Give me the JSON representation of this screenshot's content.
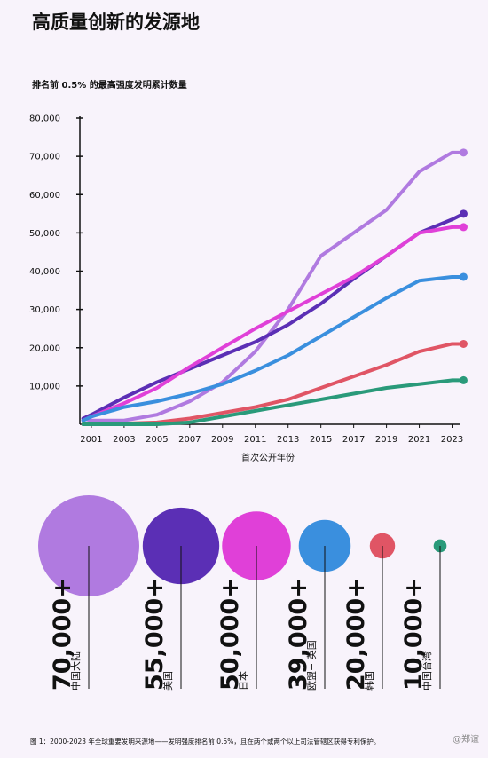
{
  "chart_data": [
    {
      "type": "line",
      "title": "高质量创新的发源地",
      "subtitle": "排名前 0.5% 的最高强度发明累计数量",
      "x_label": "首次公开年份",
      "x": [
        2000.5,
        2001,
        2003,
        2005,
        2007,
        2009,
        2011,
        2013,
        2015,
        2017,
        2019,
        2021,
        2023,
        2023.7
      ],
      "xlim": [
        2000.3,
        2024
      ],
      "xticks": [
        2001,
        2003,
        2005,
        2007,
        2009,
        2011,
        2013,
        2015,
        2017,
        2019,
        2021,
        2023
      ],
      "ylim": [
        0,
        80000
      ],
      "yticks": [
        {
          "value": 10000,
          "label": "10,000"
        },
        {
          "value": 20000,
          "label": "20,000"
        },
        {
          "value": 30000,
          "label": "30,000"
        },
        {
          "value": 40000,
          "label": "40,000"
        },
        {
          "value": 50000,
          "label": "50,000"
        },
        {
          "value": 60000,
          "label": "60,000"
        },
        {
          "value": 70000,
          "label": "70,000"
        },
        {
          "value": 80000,
          "label": "80,000"
        }
      ],
      "series": [
        {
          "name": "中国大陆",
          "color": "#b07ae0",
          "values": [
            1500,
            1000,
            1000,
            2500,
            6000,
            11000,
            19000,
            30000,
            44000,
            50000,
            56000,
            66000,
            71000,
            71000
          ]
        },
        {
          "name": "美国",
          "color": "#5b2fb5",
          "values": [
            1500,
            2500,
            7000,
            11000,
            14500,
            18000,
            21500,
            26000,
            31500,
            38000,
            44000,
            50000,
            53500,
            55000
          ]
        },
        {
          "name": "日本",
          "color": "#e040d8",
          "values": [
            1000,
            2000,
            5500,
            9500,
            15000,
            20000,
            25000,
            29500,
            34000,
            38500,
            44000,
            50000,
            51500,
            51500
          ]
        },
        {
          "name": "欧盟+ 英国",
          "color": "#3a8fde",
          "values": [
            1000,
            2000,
            4500,
            6000,
            8000,
            10500,
            14000,
            18000,
            23000,
            28000,
            33000,
            37500,
            38500,
            38500
          ]
        },
        {
          "name": "韩国",
          "color": "#e05565",
          "values": [
            0,
            0,
            200,
            500,
            1500,
            3000,
            4500,
            6500,
            9500,
            12500,
            15500,
            19000,
            21000,
            21000
          ]
        },
        {
          "name": "中国台湾",
          "color": "#2a9a7a",
          "values": [
            0,
            0,
            0,
            0,
            500,
            2000,
            3500,
            5000,
            6500,
            8000,
            9500,
            10500,
            11500,
            11500
          ]
        }
      ]
    },
    {
      "type": "bubble",
      "categories": [
        "中国大陆",
        "美国",
        "日本",
        "欧盟+ 英国",
        "韩国",
        "中国台湾"
      ],
      "values": [
        70000,
        55000,
        50000,
        39000,
        20000,
        10000
      ],
      "value_labels": [
        "70,000+",
        "55,000+",
        "50,000+",
        "39,000+",
        "20,000+",
        "10,000+"
      ],
      "colors": [
        "#b07ae0",
        "#5b2fb5",
        "#e040d8",
        "#3a8fde",
        "#e05565",
        "#2a9a7a"
      ]
    }
  ],
  "caption": "图 1：2000-2023 年全球重要发明来源地——发明强度排名前 0.5%，且在两个或两个以上司法管辖区获得专利保护。",
  "watermark": "@郑谊"
}
